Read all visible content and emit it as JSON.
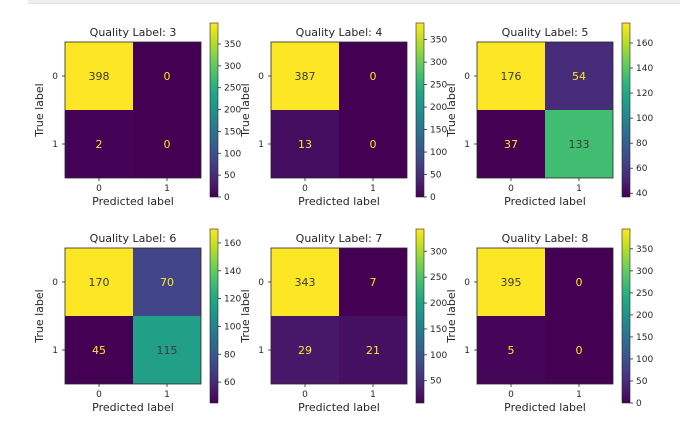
{
  "chart_data": [
    {
      "type": "heatmap",
      "title": "Quality Label: 3",
      "xlabel": "Predicted label",
      "ylabel": "True label",
      "x_ticks": [
        "0",
        "1"
      ],
      "y_ticks": [
        "0",
        "1"
      ],
      "matrix": [
        [
          398,
          0
        ],
        [
          2,
          0
        ]
      ],
      "colorbar": {
        "min": 0,
        "max": 398,
        "ticks": [
          0,
          50,
          100,
          150,
          200,
          250,
          300,
          350
        ]
      },
      "colormap": "viridis"
    },
    {
      "type": "heatmap",
      "title": "Quality Label: 4",
      "xlabel": "Predicted label",
      "ylabel": "True label",
      "x_ticks": [
        "0",
        "1"
      ],
      "y_ticks": [
        "0",
        "1"
      ],
      "matrix": [
        [
          387,
          0
        ],
        [
          13,
          0
        ]
      ],
      "colorbar": {
        "min": 0,
        "max": 387,
        "ticks": [
          0,
          50,
          100,
          150,
          200,
          250,
          300,
          350
        ]
      },
      "colormap": "viridis"
    },
    {
      "type": "heatmap",
      "title": "Quality Label: 5",
      "xlabel": "Predicted label",
      "ylabel": "True label",
      "x_ticks": [
        "0",
        "1"
      ],
      "y_ticks": [
        "0",
        "1"
      ],
      "matrix": [
        [
          176,
          54
        ],
        [
          37,
          133
        ]
      ],
      "colorbar": {
        "min": 37,
        "max": 176,
        "ticks": [
          40,
          60,
          80,
          100,
          120,
          140,
          160
        ]
      },
      "colormap": "viridis"
    },
    {
      "type": "heatmap",
      "title": "Quality Label: 6",
      "xlabel": "Predicted label",
      "ylabel": "True label",
      "x_ticks": [
        "0",
        "1"
      ],
      "y_ticks": [
        "0",
        "1"
      ],
      "matrix": [
        [
          170,
          70
        ],
        [
          45,
          115
        ]
      ],
      "colorbar": {
        "min": 45,
        "max": 170,
        "ticks": [
          60,
          80,
          100,
          120,
          140,
          160
        ]
      },
      "colormap": "viridis"
    },
    {
      "type": "heatmap",
      "title": "Quality Label: 7",
      "xlabel": "Predicted label",
      "ylabel": "True label",
      "x_ticks": [
        "0",
        "1"
      ],
      "y_ticks": [
        "0",
        "1"
      ],
      "matrix": [
        [
          343,
          7
        ],
        [
          29,
          21
        ]
      ],
      "colorbar": {
        "min": 7,
        "max": 343,
        "ticks": [
          50,
          100,
          150,
          200,
          250,
          300
        ]
      },
      "colormap": "viridis"
    },
    {
      "type": "heatmap",
      "title": "Quality Label: 8",
      "xlabel": "Predicted label",
      "ylabel": "True label",
      "x_ticks": [
        "0",
        "1"
      ],
      "y_ticks": [
        "0",
        "1"
      ],
      "matrix": [
        [
          395,
          0
        ],
        [
          5,
          0
        ]
      ],
      "colorbar": {
        "min": 0,
        "max": 395,
        "ticks": [
          0,
          50,
          100,
          150,
          200,
          250,
          300,
          350
        ]
      },
      "colormap": "viridis"
    }
  ]
}
